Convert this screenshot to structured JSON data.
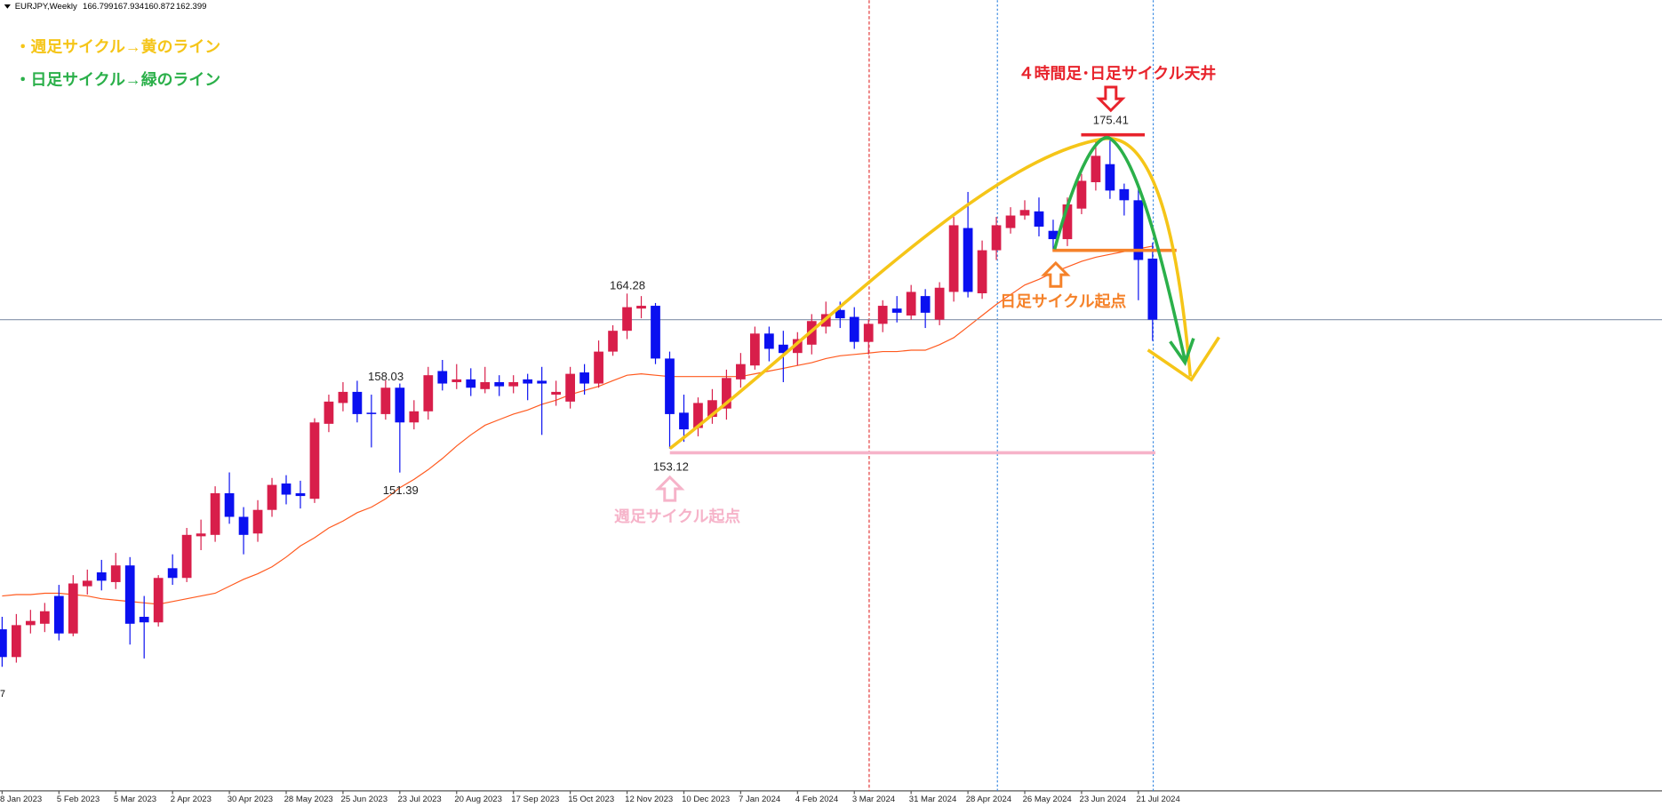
{
  "chart_data": {
    "type": "candlestick",
    "symbol": "EURJPY,Weekly",
    "left_edge_label": "7",
    "annotations": {
      "weekly_legend": "・週足サイクル→黄のライン",
      "daily_legend": "・日足サイクル→緑のライン",
      "top_label": "４時間足･日足サイクル天井",
      "daily_start": "日足サイクル起点",
      "weekly_start": "週足サイクル起点"
    },
    "categories": [
      "8 Jan 2023",
      null,
      null,
      null,
      "5 Feb 2023",
      null,
      null,
      null,
      "5 Mar 2023",
      null,
      null,
      null,
      "2 Apr 2023",
      null,
      null,
      null,
      "30 Apr 2023",
      null,
      null,
      null,
      "28 May 2023",
      null,
      null,
      null,
      "25 Jun 2023",
      null,
      null,
      null,
      "23 Jul 2023",
      null,
      null,
      null,
      "20 Aug 2023",
      null,
      null,
      null,
      "17 Sep 2023",
      null,
      null,
      null,
      "15 Oct 2023",
      null,
      null,
      null,
      "12 Nov 2023",
      null,
      null,
      null,
      "10 Dec 2023",
      null,
      null,
      null,
      "7 Jan 2024",
      null,
      null,
      null,
      "4 Feb 2024",
      null,
      null,
      null,
      "3 Mar 2024",
      null,
      null,
      null,
      "31 Mar 2024",
      null,
      null,
      null,
      "28 Apr 2024",
      null,
      null,
      null,
      "26 May 2024",
      null,
      null,
      null,
      "23 Jun 2024",
      null,
      null,
      null,
      "21 Jul 2024",
      null
    ],
    "open": [
      140.1,
      138.1,
      140.4,
      140.5,
      142.5,
      139.8,
      143.2,
      144.2,
      143.5,
      144.7,
      141.0,
      140.6,
      144.5,
      143.8,
      146.8,
      146.9,
      149.9,
      148.2,
      147.0,
      148.7,
      150.6,
      149.9,
      149.5,
      154.9,
      156.4,
      157.2,
      155.7,
      155.6,
      157.5,
      155.0,
      155.8,
      158.7,
      157.9,
      158.1,
      157.4,
      157.9,
      157.6,
      158.1,
      158.0,
      157.0,
      156.5,
      158.6,
      157.8,
      160.1,
      161.6,
      163.2,
      163.4,
      159.6,
      155.7,
      154.6,
      155.4,
      156.0,
      158.1,
      159.1,
      161.4,
      160.6,
      160.0,
      160.6,
      161.9,
      163.1,
      162.6,
      160.8,
      162.1,
      163.2,
      162.7,
      164.1,
      162.4,
      164.4,
      169.0,
      164.3,
      167.4,
      169.0,
      169.9,
      170.2,
      168.8,
      168.2,
      170.4,
      172.3,
      173.6,
      171.8,
      171.0,
      166.799
    ],
    "high": [
      141.0,
      141.2,
      141.5,
      142.0,
      143.3,
      144.0,
      144.4,
      145.1,
      145.6,
      145.3,
      142.5,
      144.0,
      145.5,
      147.4,
      148.0,
      150.4,
      151.4,
      148.9,
      149.4,
      151.0,
      151.2,
      150.8,
      155.3,
      157.0,
      157.9,
      158.0,
      157.0,
      158.03,
      157.8,
      156.6,
      159.0,
      159.5,
      159.2,
      158.9,
      159.0,
      158.4,
      158.4,
      158.5,
      159.0,
      158.0,
      159.0,
      159.2,
      160.9,
      162.0,
      164.28,
      164.1,
      163.6,
      160.1,
      157.0,
      156.8,
      157.4,
      158.8,
      160.0,
      161.9,
      161.9,
      161.6,
      161.5,
      162.8,
      163.7,
      163.7,
      163.3,
      162.4,
      163.8,
      164.1,
      164.9,
      164.6,
      165.1,
      169.8,
      171.6,
      168.1,
      169.8,
      170.5,
      171.0,
      171.2,
      169.6,
      171.2,
      172.9,
      175.41,
      175.3,
      172.2,
      171.8,
      167.934
    ],
    "low": [
      137.4,
      137.7,
      139.8,
      139.9,
      139.3,
      139.6,
      142.6,
      142.9,
      143.0,
      139.0,
      138.0,
      140.3,
      143.3,
      143.5,
      145.8,
      146.4,
      147.7,
      145.5,
      146.4,
      148.2,
      149.1,
      148.8,
      149.2,
      154.3,
      155.8,
      155.0,
      153.2,
      155.2,
      151.39,
      154.5,
      155.2,
      157.3,
      157.4,
      156.9,
      157.1,
      156.9,
      157.1,
      156.6,
      154.1,
      156.2,
      156.0,
      157.0,
      157.5,
      159.8,
      161.0,
      162.5,
      159.2,
      153.12,
      153.6,
      154.0,
      154.9,
      155.2,
      157.5,
      158.8,
      159.4,
      157.9,
      159.1,
      159.9,
      161.4,
      161.8,
      160.3,
      159.9,
      161.5,
      162.2,
      162.4,
      161.8,
      162.0,
      163.7,
      164.0,
      163.9,
      166.7,
      168.6,
      169.6,
      168.4,
      167.4,
      167.7,
      170.0,
      171.7,
      171.1,
      169.9,
      163.8,
      160.872
    ],
    "close": [
      138.1,
      140.4,
      140.7,
      141.4,
      139.8,
      143.4,
      143.6,
      143.6,
      144.7,
      140.5,
      140.6,
      143.8,
      143.8,
      146.9,
      147.0,
      149.9,
      148.2,
      146.9,
      148.7,
      150.5,
      149.8,
      149.7,
      155.0,
      156.5,
      157.2,
      155.6,
      155.6,
      157.5,
      155.0,
      155.8,
      158.4,
      157.8,
      158.1,
      157.5,
      157.9,
      157.6,
      157.9,
      157.8,
      157.8,
      157.2,
      158.5,
      157.8,
      160.1,
      161.6,
      163.3,
      163.4,
      159.6,
      155.6,
      154.5,
      156.4,
      156.6,
      158.2,
      159.2,
      161.4,
      160.3,
      160.0,
      161.0,
      162.3,
      162.8,
      162.5,
      160.8,
      162.1,
      163.4,
      162.9,
      164.4,
      162.9,
      164.7,
      169.2,
      164.4,
      167.4,
      169.2,
      169.9,
      170.3,
      169.1,
      168.2,
      170.7,
      172.4,
      174.2,
      171.7,
      171.0,
      166.7,
      162.399
    ],
    "up_color": "#d81e4a",
    "down_color": "#0a10f0",
    "ma": {
      "color": "#ff5a1f",
      "values": [
        142.5,
        142.6,
        142.6,
        142.7,
        142.7,
        142.6,
        142.5,
        142.3,
        142.2,
        142.1,
        142.0,
        141.9,
        142.1,
        142.3,
        142.5,
        142.7,
        143.2,
        143.7,
        144.1,
        144.6,
        145.3,
        146.1,
        146.7,
        147.4,
        147.9,
        148.5,
        148.9,
        149.5,
        150.3,
        150.9,
        151.6,
        152.4,
        153.3,
        154.1,
        154.8,
        155.2,
        155.6,
        155.9,
        156.3,
        156.6,
        157.0,
        157.3,
        157.6,
        158.0,
        158.4,
        158.5,
        158.4,
        158.3,
        158.3,
        158.3,
        158.3,
        158.3,
        158.3,
        158.5,
        158.7,
        158.9,
        159.1,
        159.3,
        159.6,
        159.8,
        159.9,
        160.0,
        160.1,
        160.1,
        160.2,
        160.2,
        160.6,
        161.1,
        161.9,
        162.7,
        163.5,
        164.2,
        164.9,
        165.3,
        165.8,
        166.2,
        166.6,
        166.9,
        167.1,
        167.3,
        167.5,
        167.7
      ]
    },
    "price_line_color": "#8593aa",
    "ylim": [
      128.46,
      185.41
    ]
  }
}
